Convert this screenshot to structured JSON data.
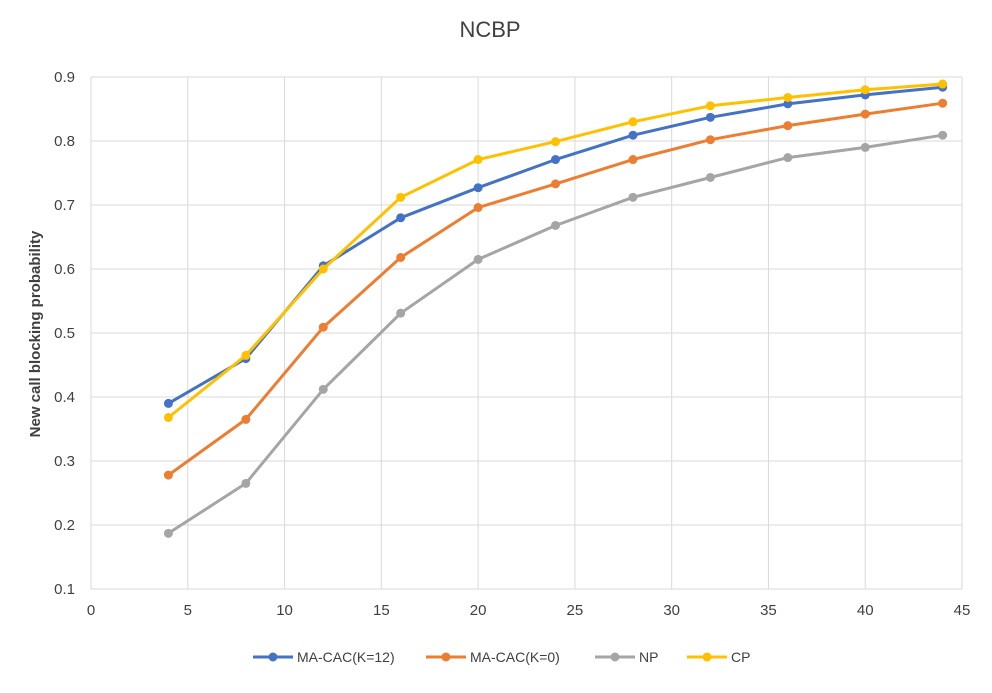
{
  "chart_data": {
    "type": "line",
    "title": "NCBP",
    "xlabel": "",
    "ylabel": "New call blocking probability",
    "xlim": [
      0,
      45
    ],
    "ylim": [
      0.1,
      0.9
    ],
    "xticks": [
      0,
      5,
      10,
      15,
      20,
      25,
      30,
      35,
      40,
      45
    ],
    "yticks": [
      0.1,
      0.2,
      0.3,
      0.4,
      0.5,
      0.6,
      0.7,
      0.8,
      0.9
    ],
    "xtick_labels": [
      "0",
      "5",
      "10",
      "15",
      "20",
      "25",
      "30",
      "35",
      "40",
      "45"
    ],
    "ytick_labels": [
      "0.1",
      "0.2",
      "0.3",
      "0.4",
      "0.5",
      "0.6",
      "0.7",
      "0.8",
      "0.9"
    ],
    "grid": true,
    "legend_position": "bottom",
    "x": [
      4,
      8,
      12,
      16,
      20,
      24,
      28,
      32,
      36,
      40,
      44
    ],
    "series": [
      {
        "name": "MA-CAC(K=12)",
        "color": "#4472c4",
        "values": [
          0.39,
          0.46,
          0.605,
          0.68,
          0.727,
          0.771,
          0.809,
          0.837,
          0.858,
          0.872,
          0.884
        ]
      },
      {
        "name": "MA-CAC(K=0)",
        "color": "#ed7d31",
        "values": [
          0.278,
          0.365,
          0.509,
          0.618,
          0.696,
          0.733,
          0.771,
          0.802,
          0.824,
          0.842,
          0.859
        ]
      },
      {
        "name": "NP",
        "color": "#a5a5a5",
        "values": [
          0.187,
          0.265,
          0.412,
          0.531,
          0.615,
          0.668,
          0.712,
          0.743,
          0.774,
          0.79,
          0.809
        ]
      },
      {
        "name": "CP",
        "color": "#ffc000",
        "values": [
          0.368,
          0.465,
          0.6,
          0.712,
          0.771,
          0.799,
          0.83,
          0.855,
          0.868,
          0.88,
          0.889
        ]
      }
    ]
  }
}
